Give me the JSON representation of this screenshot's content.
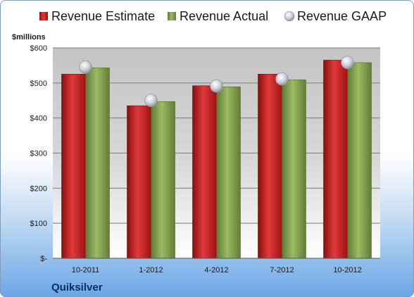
{
  "chart_data": {
    "type": "bar",
    "categories": [
      "10-2011",
      "1-2012",
      "4-2012",
      "7-2012",
      "10-2012"
    ],
    "series": [
      {
        "name": "Revenue Estimate",
        "values": [
          525,
          435,
          492,
          525,
          565
        ],
        "color": "#d42a2a"
      },
      {
        "name": "Revenue Actual",
        "values": [
          543,
          447,
          489,
          509,
          558
        ],
        "color": "#8aa653"
      }
    ],
    "points": {
      "name": "Revenue GAAP",
      "values": [
        545,
        450,
        491,
        511,
        558
      ],
      "color": "#c7cbd3"
    },
    "ylabel": "$millions",
    "ylim": [
      0,
      600
    ],
    "yticks": [
      0,
      100,
      200,
      300,
      400,
      500,
      600
    ],
    "ytick_labels": [
      "$-",
      "$100",
      "$200",
      "$300",
      "$400",
      "$500",
      "$600"
    ],
    "grid": true,
    "legend": "top",
    "footer": "Quiksilver"
  }
}
